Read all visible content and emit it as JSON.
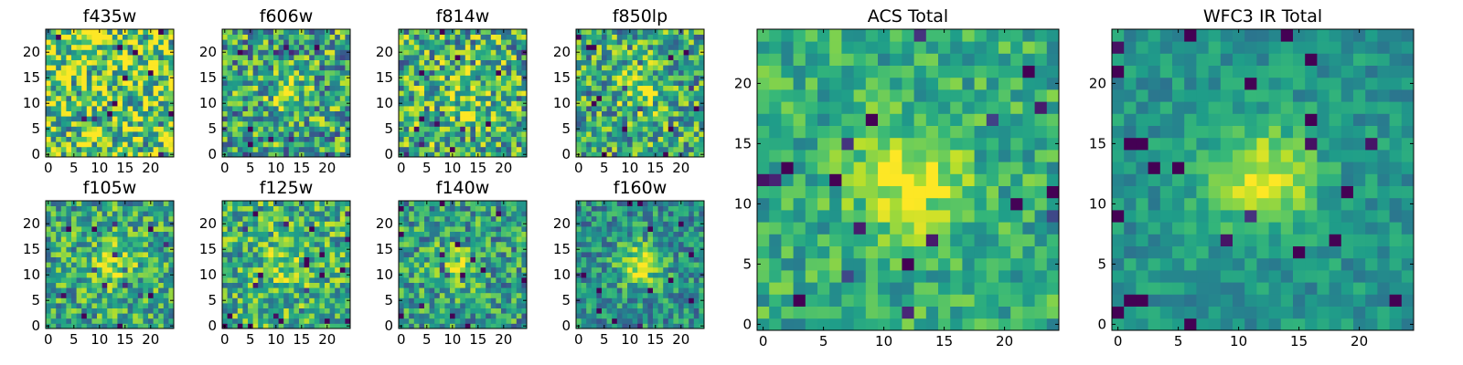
{
  "chart_data": [
    {
      "type": "heatmap",
      "title": "f435w",
      "xticks": [
        "0",
        "5",
        "10",
        "15",
        "20"
      ],
      "yticks": [
        "0",
        "5",
        "10",
        "15",
        "20"
      ],
      "xlim": [
        -0.5,
        24.5
      ],
      "ylim": [
        -0.5,
        24.5
      ],
      "colormap": "viridis",
      "grid_size": 25,
      "center": [
        12,
        12
      ],
      "peak_strength": 0.0,
      "noise_level": 0.9,
      "base_level": 0.78,
      "seed": 11
    },
    {
      "type": "heatmap",
      "title": "f606w",
      "xticks": [
        "0",
        "5",
        "10",
        "15",
        "20"
      ],
      "yticks": [
        "0",
        "5",
        "10",
        "15",
        "20"
      ],
      "xlim": [
        -0.5,
        24.5
      ],
      "ylim": [
        -0.5,
        24.5
      ],
      "colormap": "viridis",
      "grid_size": 25,
      "center": [
        12,
        12
      ],
      "peak_strength": 0.2,
      "noise_level": 0.75,
      "base_level": 0.58,
      "seed": 22
    },
    {
      "type": "heatmap",
      "title": "f814w",
      "xticks": [
        "0",
        "5",
        "10",
        "15",
        "20"
      ],
      "yticks": [
        "0",
        "5",
        "10",
        "15",
        "20"
      ],
      "xlim": [
        -0.5,
        24.5
      ],
      "ylim": [
        -0.5,
        24.5
      ],
      "colormap": "viridis",
      "grid_size": 25,
      "center": [
        12,
        12
      ],
      "peak_strength": 0.2,
      "noise_level": 0.75,
      "base_level": 0.62,
      "seed": 33
    },
    {
      "type": "heatmap",
      "title": "f850lp",
      "xticks": [
        "0",
        "5",
        "10",
        "15",
        "20"
      ],
      "yticks": [
        "0",
        "5",
        "10",
        "15",
        "20"
      ],
      "xlim": [
        -0.5,
        24.5
      ],
      "ylim": [
        -0.5,
        24.5
      ],
      "colormap": "viridis",
      "grid_size": 25,
      "center": [
        12,
        13
      ],
      "peak_strength": 0.3,
      "noise_level": 0.7,
      "base_level": 0.6,
      "seed": 44
    },
    {
      "type": "heatmap",
      "title": "f105w",
      "xticks": [
        "0",
        "5",
        "10",
        "15",
        "20"
      ],
      "yticks": [
        "0",
        "5",
        "10",
        "15",
        "20"
      ],
      "xlim": [
        -0.5,
        24.5
      ],
      "ylim": [
        -0.5,
        24.5
      ],
      "colormap": "viridis",
      "grid_size": 25,
      "center": [
        13,
        12
      ],
      "peak_strength": 0.25,
      "noise_level": 0.6,
      "base_level": 0.6,
      "seed": 55
    },
    {
      "type": "heatmap",
      "title": "f125w",
      "xticks": [
        "0",
        "5",
        "10",
        "15",
        "20"
      ],
      "yticks": [
        "0",
        "5",
        "10",
        "15",
        "20"
      ],
      "xlim": [
        -0.5,
        24.5
      ],
      "ylim": [
        -0.5,
        24.5
      ],
      "colormap": "viridis",
      "grid_size": 25,
      "center": [
        12,
        12
      ],
      "peak_strength": 0.2,
      "noise_level": 0.6,
      "base_level": 0.64,
      "seed": 66
    },
    {
      "type": "heatmap",
      "title": "f140w",
      "xticks": [
        "0",
        "5",
        "10",
        "15",
        "20"
      ],
      "yticks": [
        "0",
        "5",
        "10",
        "15",
        "20"
      ],
      "xlim": [
        -0.5,
        24.5
      ],
      "ylim": [
        -0.5,
        24.5
      ],
      "colormap": "viridis",
      "grid_size": 25,
      "center": [
        11,
        12
      ],
      "peak_strength": 0.3,
      "noise_level": 0.6,
      "base_level": 0.55,
      "seed": 77
    },
    {
      "type": "heatmap",
      "title": "f160w",
      "xticks": [
        "0",
        "5",
        "10",
        "15",
        "20"
      ],
      "yticks": [
        "0",
        "5",
        "10",
        "15",
        "20"
      ],
      "xlim": [
        -0.5,
        24.5
      ],
      "ylim": [
        -0.5,
        24.5
      ],
      "colormap": "viridis",
      "grid_size": 25,
      "center": [
        12,
        12
      ],
      "peak_strength": 0.45,
      "noise_level": 0.5,
      "base_level": 0.5,
      "seed": 88
    },
    {
      "type": "heatmap",
      "title": "ACS Total",
      "xticks": [
        "0",
        "5",
        "10",
        "15",
        "20"
      ],
      "yticks": [
        "0",
        "5",
        "10",
        "15",
        "20"
      ],
      "xlim": [
        -0.5,
        24.5
      ],
      "ylim": [
        -0.5,
        24.5
      ],
      "colormap": "viridis",
      "grid_size": 25,
      "center": [
        12,
        12
      ],
      "peak_strength": 0.4,
      "noise_level": 0.4,
      "base_level": 0.62,
      "seed": 99
    },
    {
      "type": "heatmap",
      "title": "WFC3 IR Total",
      "xticks": [
        "0",
        "5",
        "10",
        "15",
        "20"
      ],
      "yticks": [
        "0",
        "5",
        "10",
        "15",
        "20"
      ],
      "xlim": [
        -0.5,
        24.5
      ],
      "ylim": [
        -0.5,
        24.5
      ],
      "colormap": "viridis",
      "grid_size": 25,
      "center": [
        12,
        12
      ],
      "peak_strength": 0.45,
      "noise_level": 0.28,
      "base_level": 0.52,
      "seed": 123
    }
  ]
}
